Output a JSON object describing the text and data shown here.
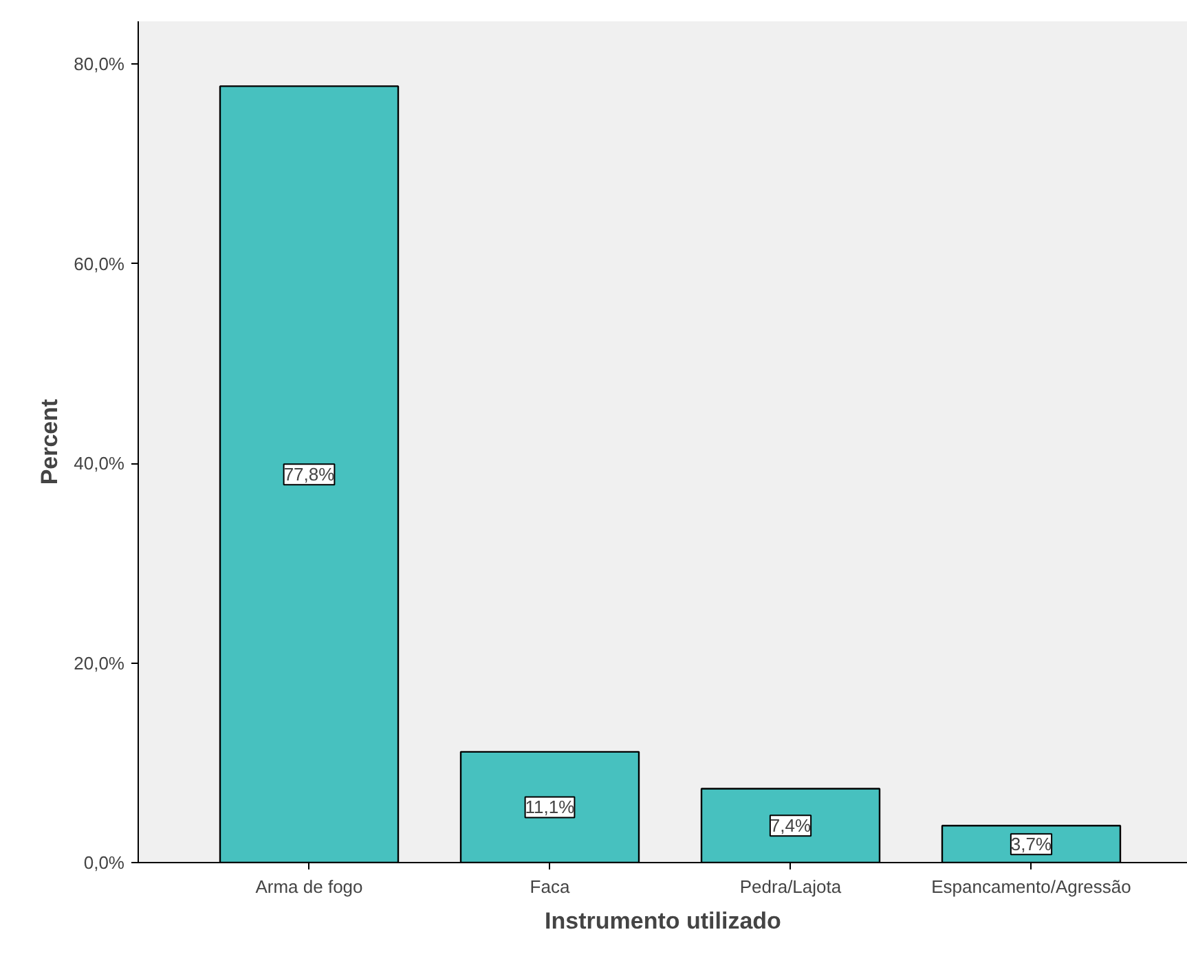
{
  "chart_data": {
    "type": "bar",
    "xlabel": "Instrumento utilizado",
    "ylabel": "Percent",
    "categories": [
      "Arma de fogo",
      "Faca",
      "Pedra/Lajota",
      "Espancamento/Agressão"
    ],
    "values": [
      77.8,
      11.1,
      7.4,
      3.7
    ],
    "value_labels": [
      "77,8%",
      "11,1%",
      "7,4%",
      "3,7%"
    ],
    "color": "#47c1bf",
    "ylim": [
      0,
      84.3
    ],
    "yticks": [
      {
        "value": 0,
        "label": "0,0%"
      },
      {
        "value": 20,
        "label": "20,0%"
      },
      {
        "value": 40,
        "label": "40,0%"
      },
      {
        "value": 60,
        "label": "60,0%"
      },
      {
        "value": 80,
        "label": "80,0%"
      }
    ],
    "grid": false
  }
}
